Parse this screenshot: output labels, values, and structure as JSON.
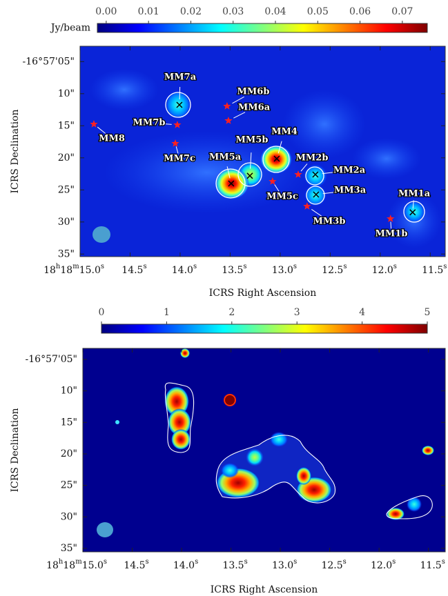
{
  "chart_data": [
    {
      "type": "image",
      "colorbar": {
        "label": "Jy/beam",
        "lim": [
          -0.0021,
          0.0759
        ],
        "colormap": "jet",
        "ticks": [
          {
            "value": 0,
            "label": "0.00"
          },
          {
            "value": 0.01,
            "label": "0.01"
          },
          {
            "value": 0.02,
            "label": "0.02"
          },
          {
            "value": 0.03,
            "label": "0.03"
          },
          {
            "value": 0.04,
            "label": "0.04"
          },
          {
            "value": 0.05,
            "label": "0.05"
          },
          {
            "value": 0.06,
            "label": "0.06"
          },
          {
            "value": 0.07,
            "label": "0.07"
          }
        ]
      },
      "xlabel": "ICRS Right Ascension",
      "ylabel": "ICRS Declination",
      "xlim": [
        15.0,
        11.35
      ],
      "xticks": [
        {
          "value": 15.0,
          "label": "18h18m15.0s"
        },
        {
          "value": 14.5,
          "label": "14.5s"
        },
        {
          "value": 14.0,
          "label": "14.0s"
        },
        {
          "value": 13.5,
          "label": "13.5s"
        },
        {
          "value": 13.0,
          "label": "13.0s"
        },
        {
          "value": 12.5,
          "label": "12.5s"
        },
        {
          "value": 12.0,
          "label": "12.0s"
        },
        {
          "value": 11.5,
          "label": "11.5s"
        }
      ],
      "ylim": [
        2.6,
        35.4
      ],
      "yticks": [
        {
          "value": 5,
          "label": "-16°57'05\""
        },
        {
          "value": 10,
          "label": "10\""
        },
        {
          "value": 15,
          "label": "15\""
        },
        {
          "value": 20,
          "label": "20\""
        },
        {
          "value": 25,
          "label": "25\""
        },
        {
          "value": 30,
          "label": "30\""
        },
        {
          "value": 35,
          "label": "35\""
        }
      ],
      "sources": [
        {
          "name": "MM7a",
          "ra": 14.007,
          "dec": 11.74,
          "marker": "x"
        },
        {
          "name": "MM6b",
          "ra": 13.531,
          "dec": 11.95,
          "marker": "star"
        },
        {
          "name": "MM6a",
          "ra": 13.517,
          "dec": 14.21,
          "marker": "star"
        },
        {
          "name": "MM7b",
          "ra": 14.028,
          "dec": 14.86,
          "marker": "star"
        },
        {
          "name": "MM8",
          "ra": 14.862,
          "dec": 14.75,
          "marker": "star"
        },
        {
          "name": "MM7c",
          "ra": 14.048,
          "dec": 17.76,
          "marker": "star"
        },
        {
          "name": "MM5b",
          "ra": 13.303,
          "dec": 22.8,
          "marker": "x"
        },
        {
          "name": "MM4",
          "ra": 13.034,
          "dec": 20.13,
          "marker": "x"
        },
        {
          "name": "MM5a",
          "ra": 13.49,
          "dec": 24.0,
          "marker": "x"
        },
        {
          "name": "MM2b",
          "ra": 12.82,
          "dec": 22.6,
          "marker": "star"
        },
        {
          "name": "MM2a",
          "ra": 12.648,
          "dec": 22.6,
          "marker": "x"
        },
        {
          "name": "MM5c",
          "ra": 13.076,
          "dec": 23.68,
          "marker": "star"
        },
        {
          "name": "MM3a",
          "ra": 12.641,
          "dec": 25.72,
          "marker": "x"
        },
        {
          "name": "MM3b",
          "ra": 12.731,
          "dec": 27.55,
          "marker": "star"
        },
        {
          "name": "MM1a",
          "ra": 11.676,
          "dec": 28.5,
          "marker": "x"
        },
        {
          "name": "MM1b",
          "ra": 11.897,
          "dec": 29.5,
          "marker": "star"
        }
      ]
    },
    {
      "type": "image",
      "colorbar": {
        "lim": [
          0,
          5
        ],
        "colormap": "jet",
        "ticks": [
          0,
          1,
          2,
          3,
          4,
          5
        ]
      },
      "xlabel": "ICRS Right Ascension",
      "ylabel": "ICRS Declination",
      "xlim": [
        15.0,
        11.33
      ],
      "xticks": [
        {
          "value": 15.0,
          "label": "18h18m15.0s"
        },
        {
          "value": 14.5,
          "label": "14.5s"
        },
        {
          "value": 14.0,
          "label": "14.0s"
        },
        {
          "value": 13.5,
          "label": "13.5s"
        },
        {
          "value": 13.0,
          "label": "13.0s"
        },
        {
          "value": 12.5,
          "label": "12.5s"
        },
        {
          "value": 12.0,
          "label": "12.0s"
        },
        {
          "value": 11.5,
          "label": "11.5s"
        }
      ],
      "ylim": [
        3.25,
        35.55
      ],
      "yticks": [
        {
          "value": 5,
          "label": "-16°57'05\""
        },
        {
          "value": 10,
          "label": "10\""
        },
        {
          "value": 15,
          "label": "15\""
        },
        {
          "value": 20,
          "label": "20\""
        },
        {
          "value": 25,
          "label": "25\""
        },
        {
          "value": 30,
          "label": "30\""
        },
        {
          "value": 35,
          "label": "35\""
        }
      ]
    }
  ]
}
